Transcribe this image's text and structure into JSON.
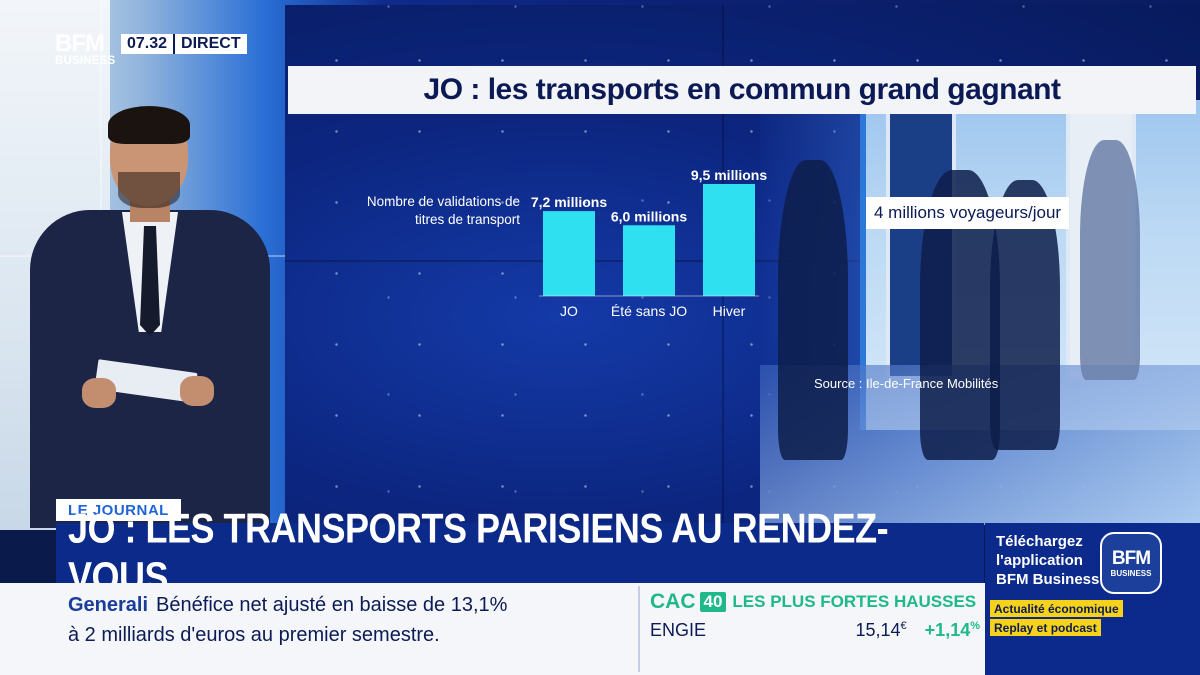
{
  "channel": {
    "logo_top": "BFM",
    "logo_bottom": "BUSINESS",
    "time": "07.32",
    "live_label": "DIRECT"
  },
  "screen": {
    "title": "JO : les transports en commun grand gagnant",
    "chart_label": "Nombre de validations de titres de transport",
    "callout": "4 millions voyageurs/jour",
    "source": "Source : Ile-de-France Mobilités"
  },
  "chart_data": {
    "type": "bar",
    "title": "JO : les transports en commun grand gagnant",
    "ylabel": "Nombre de validations de titres de transport",
    "categories": [
      "JO",
      "Été sans JO",
      "Hiver"
    ],
    "values": [
      7.2,
      6.0,
      9.5
    ],
    "value_labels": [
      "7,2 millions",
      "6,0 millions",
      "9,5 millions"
    ],
    "unit": "millions",
    "ylim": [
      0,
      9.5
    ],
    "bar_color": "#2ee0f0",
    "grid": false
  },
  "lower_third": {
    "tag": "LE JOURNAL",
    "headline": "JO : LES TRANSPORTS PARISIENS AU RENDEZ-VOUS"
  },
  "ticker": {
    "company": "Generali",
    "text_line1": "Bénéfice net ajusté en baisse de 13,1%",
    "text_line2": "à 2 milliards d'euros au premier semestre.",
    "index_name": "CAC",
    "index_num": "40",
    "index_sub": "LES PLUS FORTES HAUSSES",
    "stock_name": "ENGIE",
    "stock_price": "15,14",
    "stock_currency": "€",
    "stock_change": "+1,14",
    "stock_change_unit": "%"
  },
  "promo": {
    "line1": "Téléchargez",
    "line2": "l'application",
    "line3": "BFM Business",
    "logo_top": "BFM",
    "logo_bottom": "BUSINESS",
    "tag1": "Actualité économique",
    "tag2": "Replay et podcast"
  },
  "colors": {
    "navy": "#0c2a8a",
    "accent_green": "#1fb88a",
    "accent_yellow": "#f6d21a",
    "bar_cyan": "#2ee0f0"
  }
}
